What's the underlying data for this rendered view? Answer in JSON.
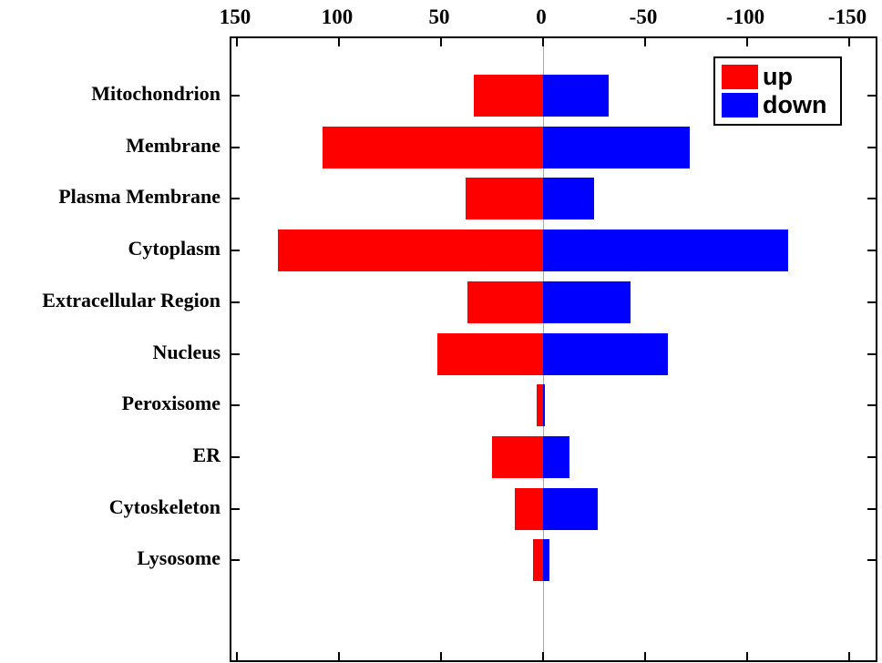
{
  "chart_data": {
    "type": "bar",
    "orientation": "horizontal-diverging",
    "title": "",
    "xlabel": "",
    "ylabel": "",
    "categories": [
      "Mitochondrion",
      "Membrane",
      "Plasma Membrane",
      "Cytoplasm",
      "Extracellular Region",
      "Nucleus",
      "Peroxisome",
      "ER",
      "Cytoskeleton",
      "Lysosome"
    ],
    "series": [
      {
        "name": "up",
        "color": "#ff0000",
        "values": [
          34,
          108,
          38,
          130,
          37,
          52,
          3,
          25,
          14,
          5
        ]
      },
      {
        "name": "down",
        "color": "#0000ff",
        "values": [
          -32,
          -72,
          -25,
          -120,
          -43,
          -61,
          -1,
          -13,
          -27,
          -3
        ]
      }
    ],
    "x_ticks": [
      150,
      100,
      50,
      0,
      -50,
      -100,
      -150
    ],
    "xlim_left": 153,
    "xlim_right": -165,
    "x_axis_location": "top",
    "x_axis_reversed": true,
    "grid": "zero-line-only",
    "zero_line_color": "#a8a8a8",
    "axis_color": "#000000",
    "legend": {
      "position": "top-right",
      "entries": [
        "up",
        "down"
      ]
    }
  }
}
